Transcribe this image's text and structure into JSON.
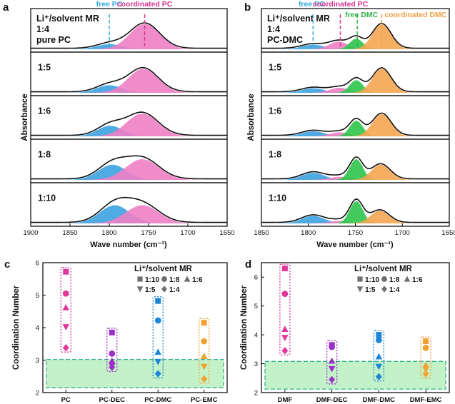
{
  "chart_data": [
    {
      "panel_label": "a",
      "type": "line",
      "title": "",
      "xlabel": "Wave number (cm⁻¹)",
      "ylabel": "Absorbance",
      "xlim": [
        1900,
        1650
      ],
      "xticks": [
        "1900",
        "1850",
        "1800",
        "1750",
        "1700",
        "1650"
      ],
      "legend_title": "Li⁺/solvent MR",
      "annotations": [
        {
          "text": "free PC",
          "x": 1800,
          "color": "#2ea8dc"
        },
        {
          "text": "coordinated PC",
          "x": 1755,
          "color": "#d6338f"
        }
      ],
      "extra_labels": [
        "1:4",
        "pure PC"
      ],
      "stacks": [
        {
          "label": "1:4",
          "components": [
            {
              "name": "free PC",
              "center": 1800,
              "width": 16,
              "amp": 0.2,
              "color": "#3ea2e0"
            },
            {
              "name": "coordinated PC",
              "center": 1755,
              "width": 19,
              "amp": 1.0,
              "color": "#ee80c4"
            }
          ]
        },
        {
          "label": "1:5",
          "components": [
            {
              "name": "free PC",
              "center": 1800,
              "width": 16,
              "amp": 0.3,
              "color": "#3ea2e0"
            },
            {
              "name": "coordinated PC",
              "center": 1757,
              "width": 19,
              "amp": 0.95,
              "color": "#ee80c4"
            }
          ]
        },
        {
          "label": "1:6",
          "components": [
            {
              "name": "free PC",
              "center": 1799,
              "width": 16,
              "amp": 0.42,
              "color": "#3ea2e0"
            },
            {
              "name": "coordinated PC",
              "center": 1758,
              "width": 20,
              "amp": 0.9,
              "color": "#ee80c4"
            }
          ]
        },
        {
          "label": "1:8",
          "components": [
            {
              "name": "free PC",
              "center": 1796,
              "width": 18,
              "amp": 0.6,
              "color": "#3ea2e0"
            },
            {
              "name": "coordinated PC",
              "center": 1758,
              "width": 21,
              "amp": 0.82,
              "color": "#ee80c4"
            }
          ]
        },
        {
          "label": "1:10",
          "components": [
            {
              "name": "free PC",
              "center": 1793,
              "width": 19,
              "amp": 0.72,
              "color": "#3ea2e0"
            },
            {
              "name": "coordinated PC",
              "center": 1758,
              "width": 21,
              "amp": 0.72,
              "color": "#ee80c4"
            }
          ]
        }
      ]
    },
    {
      "panel_label": "b",
      "type": "line",
      "title": "",
      "xlabel": "Wave number (cm⁻¹)",
      "ylabel": "Absorbance",
      "xlim": [
        1850,
        1650
      ],
      "xticks": [
        "1850",
        "1800",
        "1750",
        "1700",
        "1650"
      ],
      "legend_title": "Li⁺/solvent MR",
      "annotations": [
        {
          "text": "free PC",
          "x": 1795,
          "color": "#2ea8dc"
        },
        {
          "text": "coordinated PC",
          "x": 1766,
          "color": "#d6338f"
        },
        {
          "text": "free DMC",
          "x": 1748,
          "color": "#2fb44a"
        },
        {
          "text": "coordinated DMC",
          "x": 1722,
          "color": "#f0a040"
        }
      ],
      "extra_labels": [
        "1:4",
        "PC-DMC"
      ],
      "stacks": [
        {
          "label": "1:4",
          "components": [
            {
              "name": "free PC",
              "center": 1795,
              "width": 12,
              "amp": 0.18,
              "color": "#3ea2e0"
            },
            {
              "name": "coordinated PC",
              "center": 1768,
              "width": 10,
              "amp": 0.3,
              "color": "#ee80c4"
            },
            {
              "name": "free DMC",
              "center": 1749,
              "width": 7,
              "amp": 0.42,
              "color": "#2ec44a"
            },
            {
              "name": "coordinated DMC",
              "center": 1722,
              "width": 10,
              "amp": 0.98,
              "color": "#f5a552"
            }
          ]
        },
        {
          "label": "1:5",
          "components": [
            {
              "name": "free PC",
              "center": 1795,
              "width": 12,
              "amp": 0.18,
              "color": "#3ea2e0"
            },
            {
              "name": "coordinated PC",
              "center": 1767,
              "width": 10,
              "amp": 0.2,
              "color": "#ee80c4"
            },
            {
              "name": "free DMC",
              "center": 1749,
              "width": 7,
              "amp": 0.5,
              "color": "#2ec44a"
            },
            {
              "name": "coordinated DMC",
              "center": 1722,
              "width": 10,
              "amp": 0.95,
              "color": "#f5a552"
            }
          ]
        },
        {
          "label": "1:6",
          "components": [
            {
              "name": "free PC",
              "center": 1795,
              "width": 12,
              "amp": 0.2,
              "color": "#3ea2e0"
            },
            {
              "name": "coordinated PC",
              "center": 1767,
              "width": 10,
              "amp": 0.16,
              "color": "#ee80c4"
            },
            {
              "name": "free DMC",
              "center": 1749,
              "width": 7,
              "amp": 0.62,
              "color": "#2ec44a"
            },
            {
              "name": "coordinated DMC",
              "center": 1722,
              "width": 10,
              "amp": 0.88,
              "color": "#f5a552"
            }
          ]
        },
        {
          "label": "1:8",
          "components": [
            {
              "name": "free PC",
              "center": 1795,
              "width": 12,
              "amp": 0.28,
              "color": "#3ea2e0"
            },
            {
              "name": "coordinated PC",
              "center": 1767,
              "width": 10,
              "amp": 0.12,
              "color": "#ee80c4"
            },
            {
              "name": "free DMC",
              "center": 1749,
              "width": 7,
              "amp": 0.82,
              "color": "#2ec44a"
            },
            {
              "name": "coordinated DMC",
              "center": 1723,
              "width": 10,
              "amp": 0.6,
              "color": "#f5a552"
            }
          ]
        },
        {
          "label": "1:10",
          "components": [
            {
              "name": "free PC",
              "center": 1795,
              "width": 12,
              "amp": 0.3,
              "color": "#3ea2e0"
            },
            {
              "name": "coordinated PC",
              "center": 1767,
              "width": 10,
              "amp": 0.1,
              "color": "#ee80c4"
            },
            {
              "name": "free DMC",
              "center": 1749,
              "width": 7,
              "amp": 0.88,
              "color": "#2ec44a"
            },
            {
              "name": "coordinated DMC",
              "center": 1724,
              "width": 10,
              "amp": 0.5,
              "color": "#f5a552"
            }
          ]
        }
      ]
    },
    {
      "panel_label": "c",
      "type": "scatter",
      "title": "",
      "xlabel": "",
      "ylabel": "Coordination Number",
      "ylim": [
        2,
        6
      ],
      "yticks": [
        "2",
        "3",
        "4",
        "5",
        "6"
      ],
      "categories": [
        "PC",
        "PC-DEC",
        "PC-DMC",
        "PC-EMC"
      ],
      "category_colors": [
        "#e0389a",
        "#9b30c8",
        "#1f86d6",
        "#f2a030"
      ],
      "legend_title": "Li⁺/solvent MR",
      "series": [
        {
          "name": "1:10",
          "marker": "square",
          "values": [
            5.72,
            3.85,
            4.82,
            4.15
          ]
        },
        {
          "name": "1:8",
          "marker": "circle",
          "values": [
            5.05,
            3.2,
            4.22,
            3.58
          ]
        },
        {
          "name": "1:6",
          "marker": "triangle-up",
          "values": [
            4.62,
            2.98,
            3.25,
            3.12
          ]
        },
        {
          "name": "1:5",
          "marker": "triangle-down",
          "values": [
            4.02,
            2.82,
            2.95,
            2.8
          ]
        },
        {
          "name": "1:4",
          "marker": "diamond",
          "values": [
            3.38,
            2.78,
            2.58,
            2.42
          ]
        }
      ],
      "highlight_band": [
        2.15,
        3.02
      ]
    },
    {
      "panel_label": "d",
      "type": "scatter",
      "title": "",
      "xlabel": "",
      "ylabel": "Coordination Number",
      "ylim": [
        2,
        6.5
      ],
      "yticks": [
        "2",
        "3",
        "4",
        "5",
        "6"
      ],
      "categories": [
        "DMF",
        "DMF-DEC",
        "DMF-DMC",
        "DMF-EMC"
      ],
      "category_colors": [
        "#e0389a",
        "#9b30c8",
        "#1f86d6",
        "#f2a030"
      ],
      "legend_title": "Li⁺/solvent MR",
      "series": [
        {
          "name": "1:10",
          "marker": "square",
          "values": [
            6.3,
            3.65,
            4.0,
            3.78
          ]
        },
        {
          "name": "1:8",
          "marker": "circle",
          "values": [
            5.42,
            3.58,
            3.82,
            3.55
          ]
        },
        {
          "name": "1:6",
          "marker": "triangle-up",
          "values": [
            4.2,
            3.1,
            3.25,
            2.95
          ]
        },
        {
          "name": "1:5",
          "marker": "triangle-down",
          "values": [
            3.9,
            2.82,
            2.9,
            2.8
          ]
        },
        {
          "name": "1:4",
          "marker": "diamond",
          "values": [
            3.45,
            2.45,
            2.55,
            2.65
          ]
        }
      ],
      "highlight_band": [
        2.12,
        3.08
      ]
    }
  ]
}
